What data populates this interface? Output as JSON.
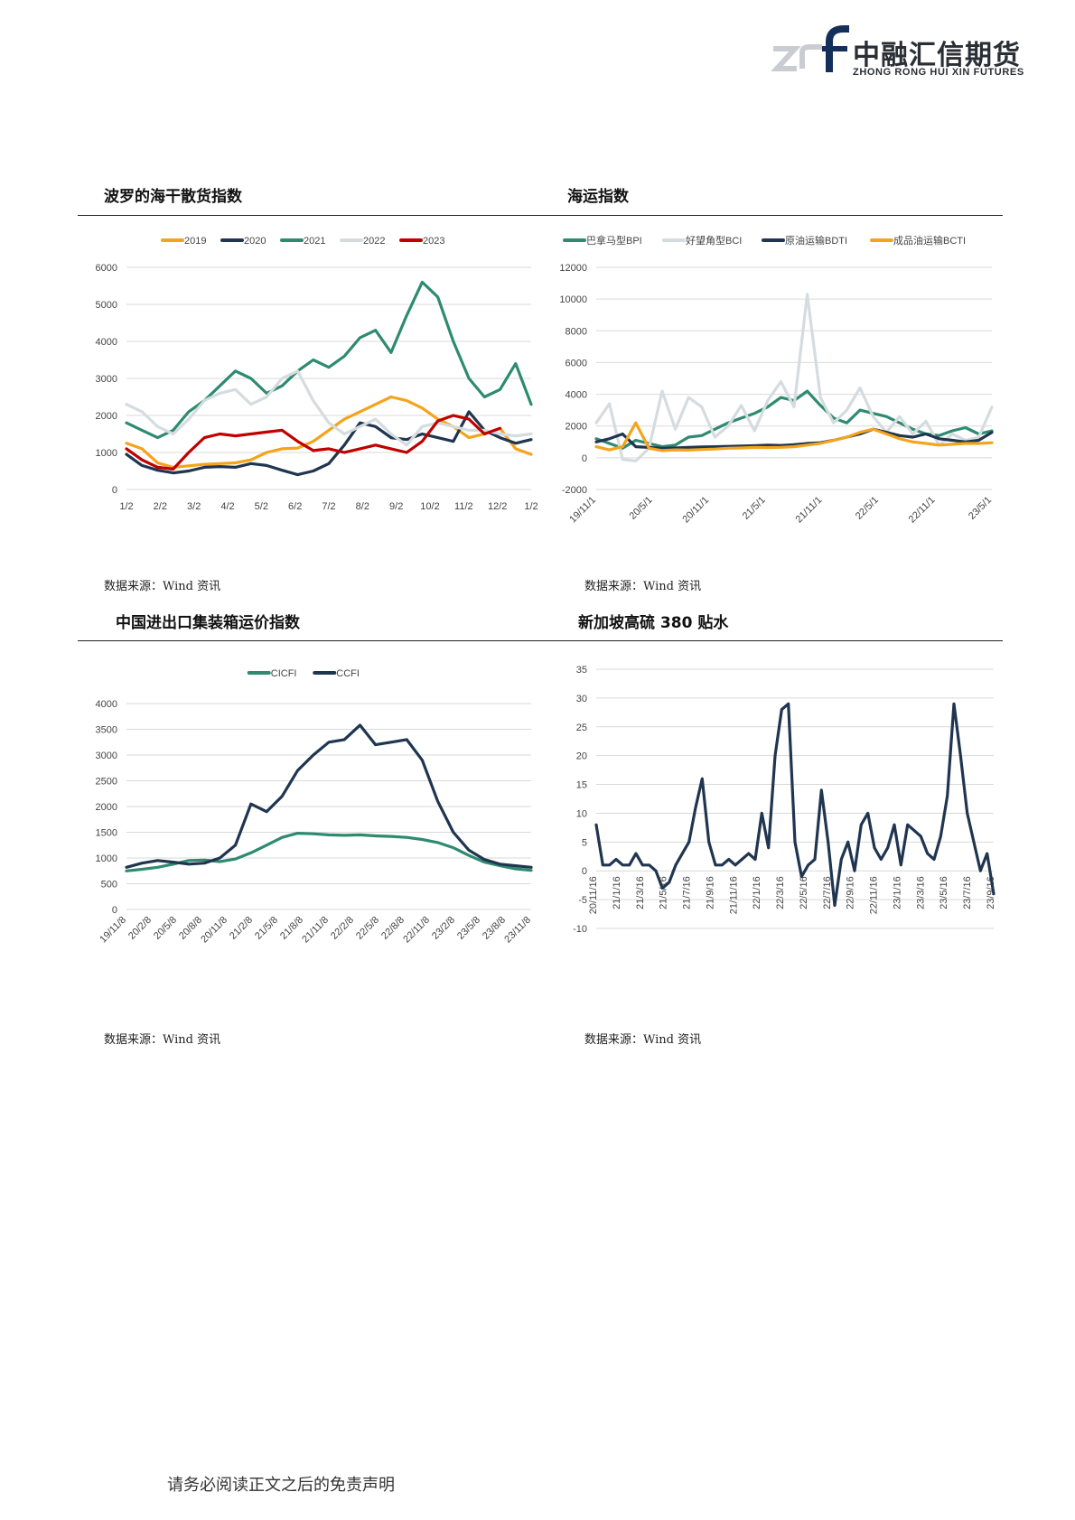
{
  "header": {
    "logo_mark": "znf",
    "company_cn": "中融汇信期货",
    "company_en": "ZHONG RONG HUI XIN FUTURES"
  },
  "sections": [
    {
      "title": "波罗的海干散货指数",
      "source": "数据来源：Wind 资讯"
    },
    {
      "title": "海运指数",
      "source": "数据来源：Wind 资讯"
    },
    {
      "title": "中国进出口集装箱运价指数",
      "source": "数据来源：Wind 资讯"
    },
    {
      "title": "新加坡高硫 380 贴水",
      "source": "数据来源：Wind 资讯"
    }
  ],
  "footer": {
    "disclaimer": "请务必阅读正文之后的免责声明"
  },
  "colors": {
    "orange": "#F4A41C",
    "navy": "#1F3550",
    "green": "#2E8B6F",
    "light": "#D5DCE0",
    "red": "#C00000"
  },
  "chart_data": [
    {
      "type": "line",
      "title": "波罗的海干散货指数",
      "x_ticks": [
        "1/2",
        "2/2",
        "3/2",
        "4/2",
        "5/2",
        "6/2",
        "7/2",
        "8/2",
        "9/2",
        "10/2",
        "11/2",
        "12/2",
        "1/2"
      ],
      "ylim": [
        0,
        6000
      ],
      "y_ticks": [
        0,
        1000,
        2000,
        3000,
        4000,
        5000,
        6000
      ],
      "legend": "top",
      "series": [
        {
          "name": "2019",
          "color": "#F4A41C",
          "values": [
            1250,
            1100,
            720,
            600,
            640,
            680,
            700,
            720,
            800,
            1000,
            1100,
            1120,
            1300,
            1600,
            1900,
            2100,
            2300,
            2500,
            2400,
            2200,
            1900,
            1700,
            1400,
            1500,
            1650,
            1100,
            950
          ]
        },
        {
          "name": "2020",
          "color": "#1F3550",
          "values": [
            950,
            650,
            520,
            450,
            500,
            600,
            620,
            600,
            700,
            650,
            520,
            400,
            500,
            700,
            1200,
            1800,
            1700,
            1400,
            1350,
            1500,
            1400,
            1300,
            2100,
            1600,
            1400,
            1250,
            1350
          ]
        },
        {
          "name": "2021",
          "color": "#2E8B6F",
          "values": [
            1800,
            1600,
            1400,
            1600,
            2100,
            2400,
            2800,
            3200,
            3000,
            2600,
            2800,
            3200,
            3500,
            3300,
            3600,
            4100,
            4300,
            3700,
            4700,
            5600,
            5200,
            4000,
            3000,
            2500,
            2700,
            3400,
            2300
          ]
        },
        {
          "name": "2022",
          "color": "#D5DCE0",
          "values": [
            2300,
            2100,
            1700,
            1500,
            1900,
            2400,
            2600,
            2700,
            2300,
            2500,
            3000,
            3200,
            2400,
            1800,
            1500,
            1700,
            1900,
            1500,
            1200,
            1700,
            1800,
            1700,
            1600,
            1600,
            1500,
            1450,
            1500
          ]
        },
        {
          "name": "2023",
          "color": "#C00000",
          "values": [
            1100,
            800,
            600,
            550,
            1000,
            1400,
            1500,
            1450,
            1500,
            1550,
            1600,
            1300,
            1050,
            1100,
            1000,
            1100,
            1200,
            1100,
            1000,
            1300,
            1850,
            2000,
            1900,
            1500,
            1650
          ]
        }
      ]
    },
    {
      "type": "line",
      "title": "海运指数",
      "x_ticks": [
        "19/11/1",
        "20/5/1",
        "20/11/1",
        "21/5/1",
        "21/11/1",
        "22/5/1",
        "22/11/1",
        "23/5/1"
      ],
      "ylim": [
        -2000,
        12000
      ],
      "y_ticks": [
        -2000,
        0,
        2000,
        4000,
        6000,
        8000,
        10000,
        12000
      ],
      "legend": "top",
      "series": [
        {
          "name": "巴拿马型BPI",
          "color": "#2E8B6F",
          "values": [
            1200,
            900,
            600,
            1100,
            900,
            700,
            800,
            1300,
            1400,
            1800,
            2200,
            2500,
            2800,
            3200,
            3800,
            3600,
            4200,
            3300,
            2500,
            2200,
            3000,
            2800,
            2600,
            2200,
            1800,
            1500,
            1400,
            1700,
            1900,
            1500,
            1700
          ]
        },
        {
          "name": "好望角型BCI",
          "color": "#D5DCE0",
          "values": [
            2200,
            3400,
            -100,
            -200,
            600,
            4200,
            1800,
            3800,
            3200,
            1300,
            2000,
            3300,
            1700,
            3600,
            4800,
            3200,
            10300,
            3800,
            2200,
            3000,
            4400,
            2600,
            1600,
            2600,
            1500,
            2300,
            800,
            1500,
            1100,
            1300,
            3200
          ]
        },
        {
          "name": "原油运输BDTI",
          "color": "#1F3550",
          "values": [
            1000,
            1200,
            1500,
            700,
            650,
            600,
            620,
            650,
            680,
            700,
            720,
            740,
            760,
            800,
            780,
            820,
            900,
            950,
            1100,
            1300,
            1500,
            1800,
            1600,
            1400,
            1300,
            1500,
            1200,
            1100,
            1000,
            1100,
            1600
          ]
        },
        {
          "name": "成品油运输BCTI",
          "color": "#F4A41C",
          "values": [
            700,
            500,
            700,
            2200,
            600,
            450,
            500,
            480,
            520,
            550,
            600,
            620,
            650,
            640,
            660,
            700,
            800,
            900,
            1100,
            1300,
            1600,
            1800,
            1500,
            1200,
            1000,
            900,
            800,
            850,
            900,
            900,
            950
          ]
        }
      ]
    },
    {
      "type": "line",
      "title": "中国进出口集装箱运价指数",
      "x_ticks": [
        "19/11/8",
        "20/2/8",
        "20/5/8",
        "20/8/8",
        "20/11/8",
        "21/2/8",
        "21/5/8",
        "21/8/8",
        "21/11/8",
        "22/2/8",
        "22/5/8",
        "22/8/8",
        "22/11/8",
        "23/2/8",
        "23/5/8",
        "23/8/8",
        "23/11/8"
      ],
      "ylim": [
        0,
        4000
      ],
      "y_ticks": [
        0,
        500,
        1000,
        1500,
        2000,
        2500,
        3000,
        3500,
        4000
      ],
      "legend": "top",
      "series": [
        {
          "name": "CICFI",
          "color": "#2E8B6F",
          "values": [
            750,
            780,
            820,
            880,
            950,
            960,
            930,
            980,
            1100,
            1250,
            1400,
            1480,
            1470,
            1450,
            1440,
            1450,
            1430,
            1420,
            1400,
            1360,
            1300,
            1200,
            1050,
            920,
            850,
            790,
            760
          ]
        },
        {
          "name": "CCFI",
          "color": "#1F3550",
          "values": [
            820,
            900,
            950,
            920,
            880,
            900,
            1000,
            1250,
            2050,
            1900,
            2200,
            2700,
            3000,
            3250,
            3300,
            3580,
            3200,
            3250,
            3300,
            2900,
            2100,
            1500,
            1150,
            970,
            880,
            850,
            820
          ]
        }
      ]
    },
    {
      "type": "line",
      "title": "新加坡高硫 380 贴水",
      "x_ticks": [
        "20/11/16",
        "21/1/16",
        "21/3/16",
        "21/5/16",
        "21/7/16",
        "21/9/16",
        "21/11/16",
        "22/1/16",
        "22/3/16",
        "22/5/16",
        "22/7/16",
        "22/9/16",
        "22/11/16",
        "23/1/16",
        "23/3/16",
        "23/5/16",
        "23/7/16",
        "23/9/16"
      ],
      "ylim": [
        -10,
        35
      ],
      "y_ticks": [
        -10,
        -5,
        0,
        5,
        10,
        15,
        20,
        25,
        30,
        35
      ],
      "series": [
        {
          "name": "",
          "color": "#1F3550",
          "values": [
            8,
            1,
            1,
            2,
            1,
            1,
            3,
            1,
            1,
            0,
            -3,
            -2,
            1,
            3,
            5,
            11,
            16,
            5,
            1,
            1,
            2,
            1,
            2,
            3,
            2,
            10,
            4,
            20,
            28,
            29,
            5,
            -1,
            1,
            2,
            14,
            5,
            -6,
            2,
            5,
            0,
            8,
            10,
            4,
            2,
            4,
            8,
            1,
            8,
            7,
            6,
            3,
            2,
            6,
            13,
            29,
            20,
            10,
            5,
            0,
            3,
            -4
          ]
        }
      ]
    }
  ]
}
